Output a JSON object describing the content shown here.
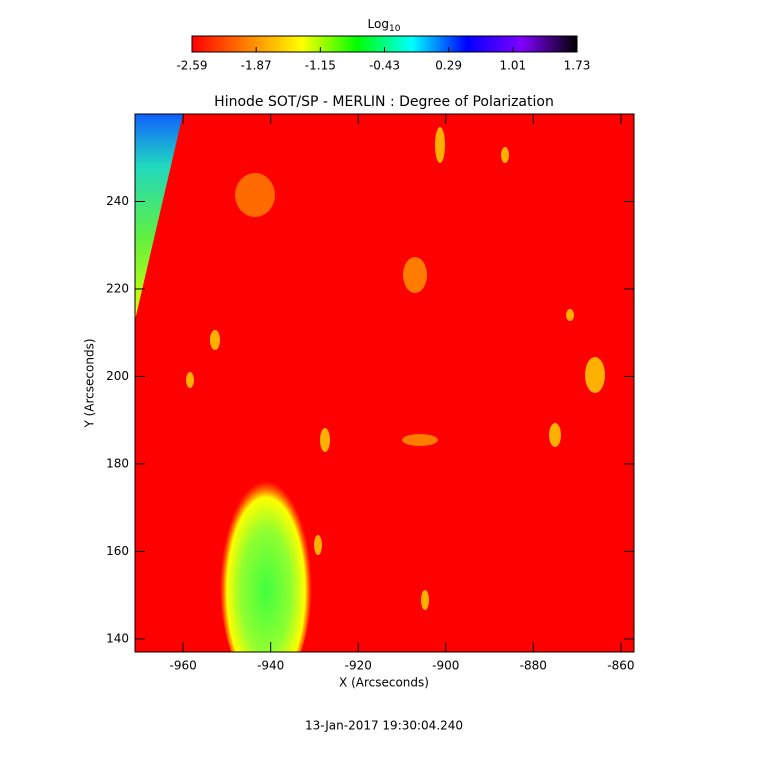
{
  "chart_data": {
    "type": "image",
    "title": "Hinode SOT/SP - MERLIN : Degree of Polarization",
    "x_label": "X (Arcseconds)",
    "y_label": "Y (Arcseconds)",
    "timestamp": "13-Jan-2017 19:30:04.240",
    "colorbar_label": "Log",
    "colorbar_label_sub": "10",
    "clim": [
      -2.59,
      1.73
    ],
    "cticks": [
      -2.59,
      -1.87,
      -1.15,
      -0.43,
      0.29,
      1.01,
      1.73
    ],
    "colorscale": [
      "#ff0000",
      "#ff8000",
      "#ffff00",
      "#00ff00",
      "#00ffff",
      "#0000ff",
      "#8000ff",
      "#000000"
    ],
    "xlim": [
      -971,
      -857
    ],
    "xticks": [
      -960,
      -940,
      -920,
      -900,
      -880,
      -860
    ],
    "ylim": [
      137,
      260
    ],
    "yticks": [
      140,
      160,
      180,
      200,
      220,
      240
    ]
  }
}
